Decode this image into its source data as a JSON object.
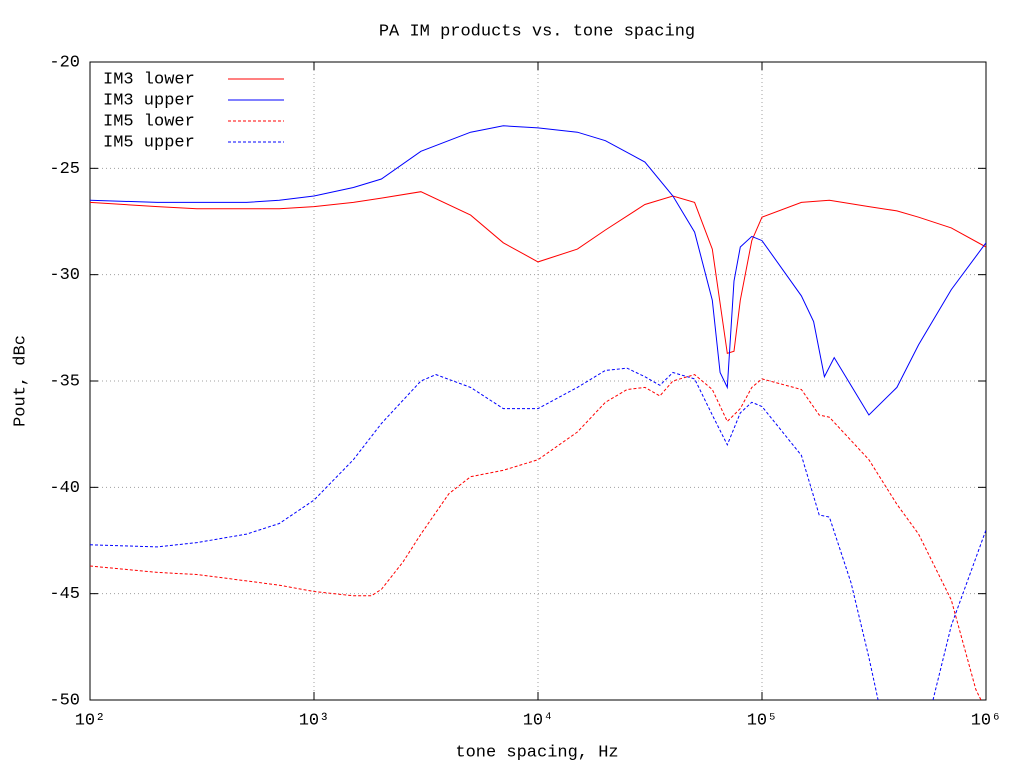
{
  "chart_data": {
    "type": "line",
    "title": "PA IM products vs. tone spacing",
    "x_label": "tone spacing, Hz",
    "y_label": "Pout, dBc",
    "xlog": true,
    "grid": true,
    "legend": "top-left",
    "xlim": [
      100,
      1000000
    ],
    "ylim": [
      -50,
      -20
    ],
    "xticks": [
      {
        "value": 100,
        "label": "10²"
      },
      {
        "value": 1000,
        "label": "10³"
      },
      {
        "value": 10000,
        "label": "10⁴"
      },
      {
        "value": 100000,
        "label": "10⁵"
      },
      {
        "value": 1000000,
        "label": "10⁶"
      }
    ],
    "yticks": [
      -20,
      -25,
      -30,
      -35,
      -40,
      -45,
      -50
    ],
    "series": [
      {
        "name": "IM3 lower",
        "color": "#ff0000",
        "dashed": false,
        "x": [
          100,
          200,
          300,
          500,
          700,
          1000,
          1500,
          2000,
          3000,
          5000,
          7000,
          10000,
          15000,
          20000,
          30000,
          40000,
          50000,
          60000,
          70000,
          75000,
          80000,
          90000,
          100000,
          150000,
          200000,
          300000,
          400000,
          500000,
          700000,
          1000000
        ],
        "values": [
          -26.6,
          -26.8,
          -26.9,
          -26.9,
          -26.9,
          -26.8,
          -26.6,
          -26.4,
          -26.1,
          -27.2,
          -28.5,
          -29.4,
          -28.8,
          -27.9,
          -26.7,
          -26.3,
          -26.6,
          -28.8,
          -33.7,
          -33.6,
          -31.2,
          -28.4,
          -27.3,
          -26.6,
          -26.5,
          -26.8,
          -27.0,
          -27.3,
          -27.8,
          -28.7
        ]
      },
      {
        "name": "IM3 upper",
        "color": "#0000ff",
        "dashed": false,
        "x": [
          100,
          200,
          300,
          500,
          700,
          1000,
          1500,
          2000,
          3000,
          5000,
          7000,
          10000,
          15000,
          20000,
          30000,
          40000,
          50000,
          60000,
          65000,
          70000,
          75000,
          80000,
          90000,
          100000,
          150000,
          170000,
          190000,
          210000,
          300000,
          400000,
          500000,
          700000,
          1000000
        ],
        "values": [
          -26.5,
          -26.6,
          -26.6,
          -26.6,
          -26.5,
          -26.3,
          -25.9,
          -25.5,
          -24.2,
          -23.3,
          -23.0,
          -23.1,
          -23.3,
          -23.7,
          -24.7,
          -26.3,
          -28.0,
          -31.2,
          -34.6,
          -35.3,
          -30.3,
          -28.7,
          -28.2,
          -28.4,
          -31.0,
          -32.2,
          -34.8,
          -33.9,
          -36.6,
          -35.3,
          -33.3,
          -30.7,
          -28.5
        ]
      },
      {
        "name": "IM5 lower",
        "color": "#ff0000",
        "dashed": true,
        "x": [
          100,
          200,
          300,
          500,
          700,
          1000,
          1500,
          1800,
          2000,
          2500,
          3000,
          4000,
          5000,
          7000,
          10000,
          15000,
          20000,
          25000,
          30000,
          35000,
          40000,
          50000,
          60000,
          70000,
          80000,
          90000,
          100000,
          150000,
          180000,
          200000,
          300000,
          400000,
          500000,
          700000,
          900000,
          950000
        ],
        "values": [
          -43.7,
          -44.0,
          -44.1,
          -44.4,
          -44.6,
          -44.9,
          -45.1,
          -45.1,
          -44.8,
          -43.5,
          -42.2,
          -40.3,
          -39.5,
          -39.2,
          -38.7,
          -37.4,
          -36.0,
          -35.4,
          -35.3,
          -35.7,
          -35.0,
          -34.7,
          -35.4,
          -36.9,
          -36.3,
          -35.3,
          -34.9,
          -35.4,
          -36.6,
          -36.7,
          -38.7,
          -40.8,
          -42.2,
          -45.3,
          -49.5,
          -50
        ]
      },
      {
        "name": "IM5 upper",
        "color": "#0000ff",
        "dashed": true,
        "x": [
          100,
          200,
          300,
          500,
          700,
          1000,
          1500,
          2000,
          3000,
          3500,
          5000,
          7000,
          10000,
          15000,
          20000,
          25000,
          30000,
          35000,
          40000,
          50000,
          60000,
          70000,
          80000,
          90000,
          100000,
          150000,
          180000,
          200000,
          250000,
          300000,
          330000,
          null,
          580000,
          700000,
          1000000
        ],
        "values": [
          -42.7,
          -42.8,
          -42.6,
          -42.2,
          -41.7,
          -40.6,
          -38.7,
          -37.0,
          -35.0,
          -34.7,
          -35.3,
          -36.3,
          -36.3,
          -35.3,
          -34.5,
          -34.4,
          -34.8,
          -35.2,
          -34.6,
          -34.9,
          -36.6,
          -38.0,
          -36.5,
          -36.0,
          -36.2,
          -38.5,
          -41.3,
          -41.4,
          -44.5,
          -48.0,
          -50,
          null,
          -50,
          -46.5,
          -42.0
        ]
      }
    ]
  }
}
